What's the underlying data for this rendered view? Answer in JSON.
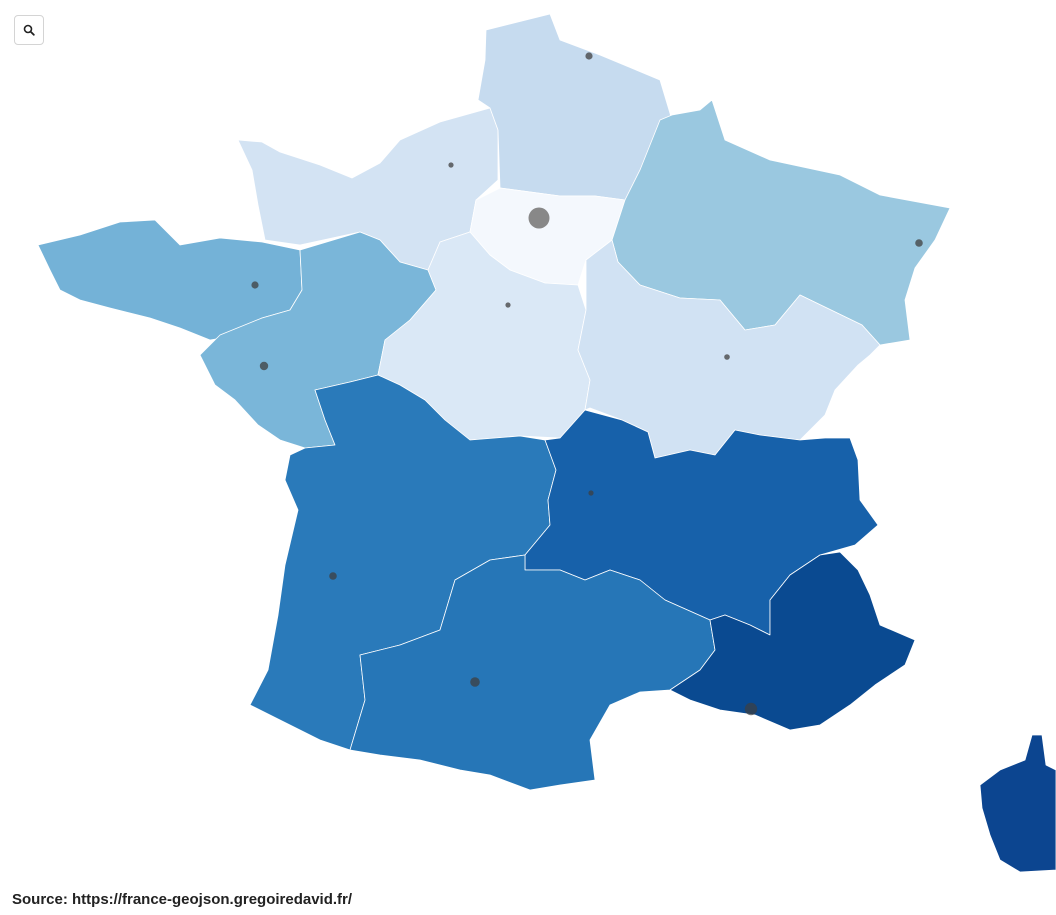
{
  "toolbar": {
    "search_icon": "search-icon"
  },
  "map": {
    "colors": {
      "ile-de-france": "#f4f8fd",
      "hauts-de-france": "#c6dbef",
      "normandie": "#d3e3f3",
      "grand-est": "#9ac8e0",
      "centre-val-de-loire": "#dae8f6",
      "bourgogne-franche-comte": "#d1e2f3",
      "bretagne": "#74b2d7",
      "pays-de-la-loire": "#7ab6d9",
      "nouvelle-aquitaine": "#2a7aba",
      "occitanie": "#2676b7",
      "auvergne-rhone-alpes": "#1761aa",
      "provence-alpes-cote-dazur": "#0a4a91",
      "corse": "#0c4590",
      "marker": "#3f3f3f",
      "marker_light": "#888888"
    }
  },
  "footer": {
    "source": "Source: https://france-geojson.gregoiredavid.fr/"
  }
}
